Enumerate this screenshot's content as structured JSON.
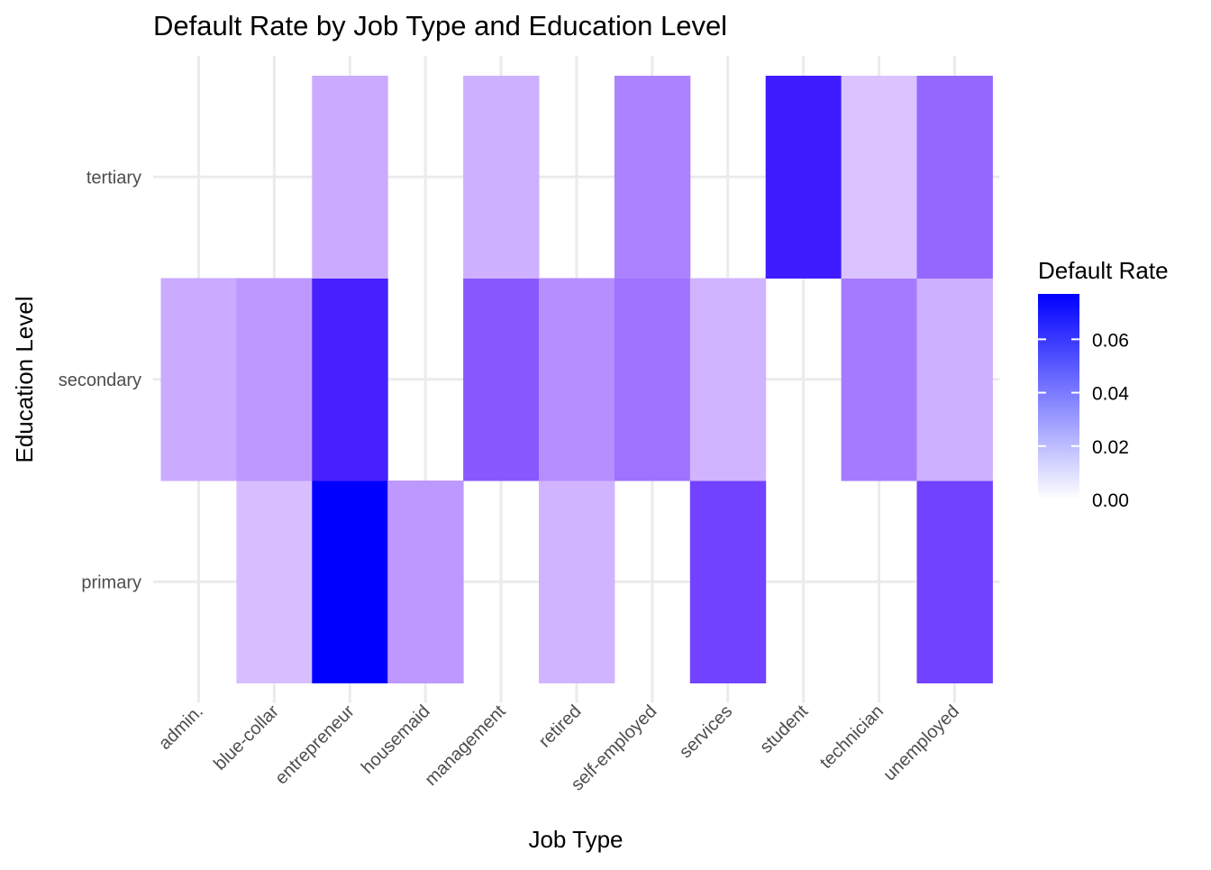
{
  "chart_data": {
    "type": "heatmap",
    "title": "Default Rate by Job Type and Education Level",
    "xlabel": "Job Type",
    "ylabel": "Education Level",
    "x_categories": [
      "admin.",
      "blue-collar",
      "entrepreneur",
      "housemaid",
      "management",
      "retired",
      "self-employed",
      "services",
      "student",
      "technician",
      "unemployed"
    ],
    "y_categories": [
      "primary",
      "secondary",
      "tertiary"
    ],
    "cells": [
      {
        "x": "admin.",
        "y": "secondary",
        "value": 0.016
      },
      {
        "x": "blue-collar",
        "y": "primary",
        "value": 0.012
      },
      {
        "x": "blue-collar",
        "y": "secondary",
        "value": 0.02
      },
      {
        "x": "entrepreneur",
        "y": "primary",
        "value": 0.077
      },
      {
        "x": "entrepreneur",
        "y": "secondary",
        "value": 0.056
      },
      {
        "x": "entrepreneur",
        "y": "tertiary",
        "value": 0.016
      },
      {
        "x": "housemaid",
        "y": "primary",
        "value": 0.02
      },
      {
        "x": "management",
        "y": "secondary",
        "value": 0.036
      },
      {
        "x": "management",
        "y": "tertiary",
        "value": 0.015
      },
      {
        "x": "retired",
        "y": "primary",
        "value": 0.014
      },
      {
        "x": "retired",
        "y": "secondary",
        "value": 0.022
      },
      {
        "x": "self-employed",
        "y": "secondary",
        "value": 0.029
      },
      {
        "x": "self-employed",
        "y": "tertiary",
        "value": 0.025
      },
      {
        "x": "services",
        "y": "primary",
        "value": 0.043
      },
      {
        "x": "services",
        "y": "secondary",
        "value": 0.014
      },
      {
        "x": "student",
        "y": "tertiary",
        "value": 0.058
      },
      {
        "x": "technician",
        "y": "secondary",
        "value": 0.027
      },
      {
        "x": "technician",
        "y": "tertiary",
        "value": 0.011
      },
      {
        "x": "unemployed",
        "y": "primary",
        "value": 0.043
      },
      {
        "x": "unemployed",
        "y": "secondary",
        "value": 0.015
      },
      {
        "x": "unemployed",
        "y": "tertiary",
        "value": 0.032
      }
    ],
    "legend": {
      "title": "Default Rate",
      "position": "right",
      "ticks": [
        0.0,
        0.02,
        0.04,
        0.06
      ],
      "tick_labels": [
        "0.00",
        "0.02",
        "0.04",
        "0.06"
      ],
      "range": [
        0,
        0.077
      ],
      "color_low": "#ffffff",
      "color_high": "#0000ff"
    },
    "grid": true
  }
}
